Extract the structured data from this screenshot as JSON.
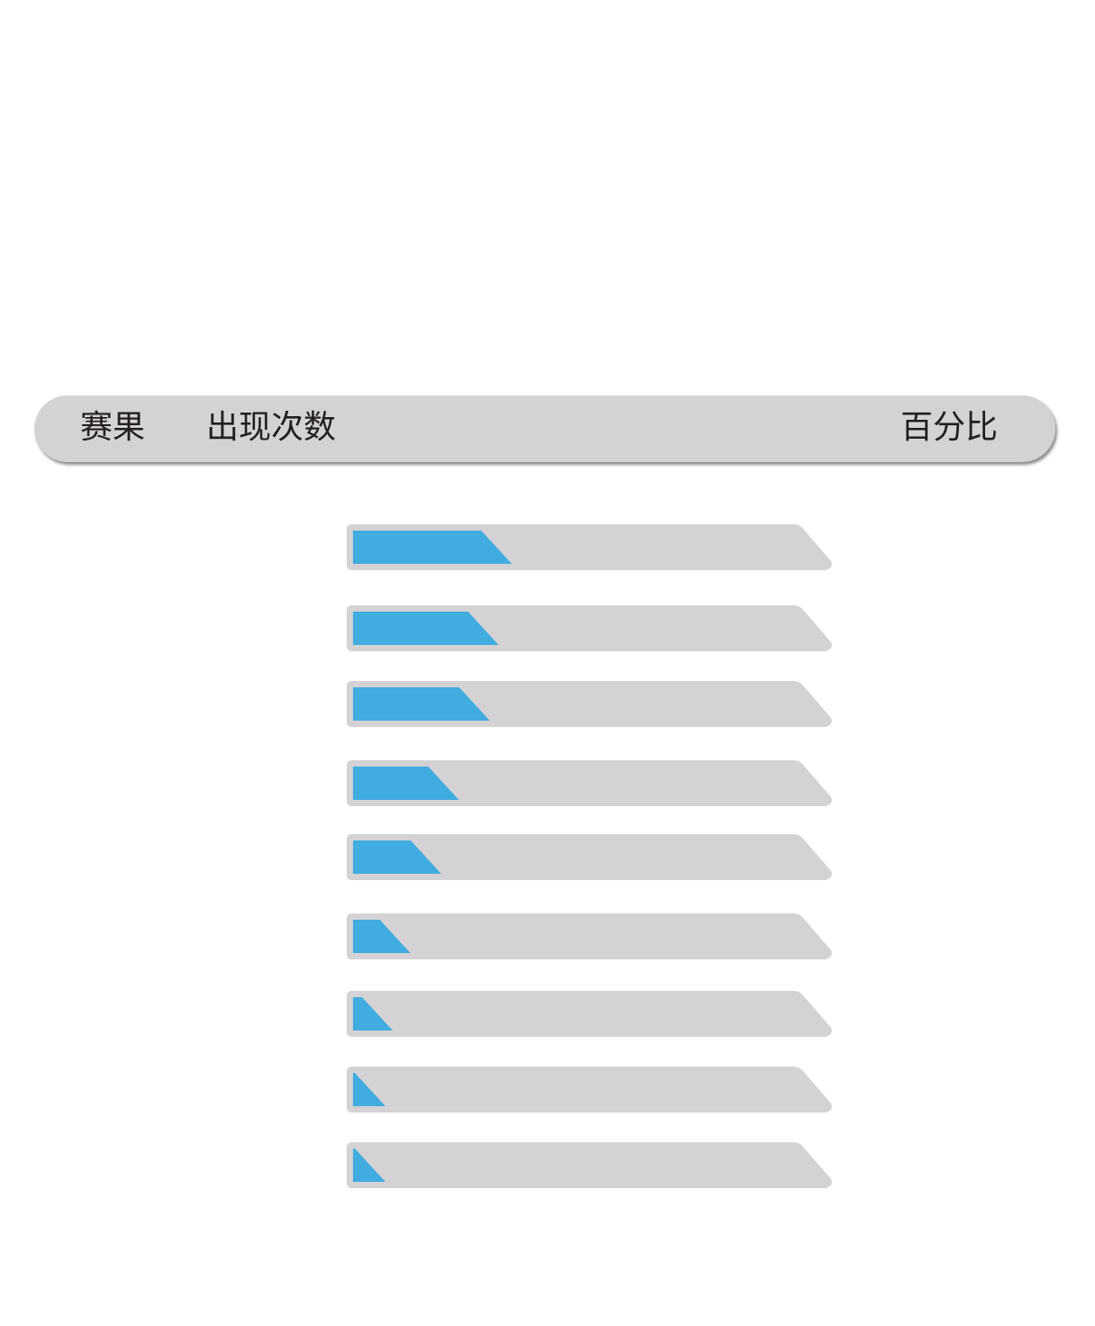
{
  "header": {
    "result_label": "赛果",
    "count_label": "出现次数",
    "percent_label": "百分比"
  },
  "colors": {
    "track": "#d4d2d5",
    "fill": "#41acdf",
    "header_bg": "#d4d2d5",
    "header_text": "#231f20"
  },
  "rows": [
    {
      "fill_fraction": 0.36
    },
    {
      "fill_fraction": 0.33
    },
    {
      "fill_fraction": 0.31
    },
    {
      "fill_fraction": 0.24
    },
    {
      "fill_fraction": 0.2
    },
    {
      "fill_fraction": 0.13
    },
    {
      "fill_fraction": 0.09
    },
    {
      "fill_fraction": 0.07
    },
    {
      "fill_fraction": 0.05
    }
  ]
}
